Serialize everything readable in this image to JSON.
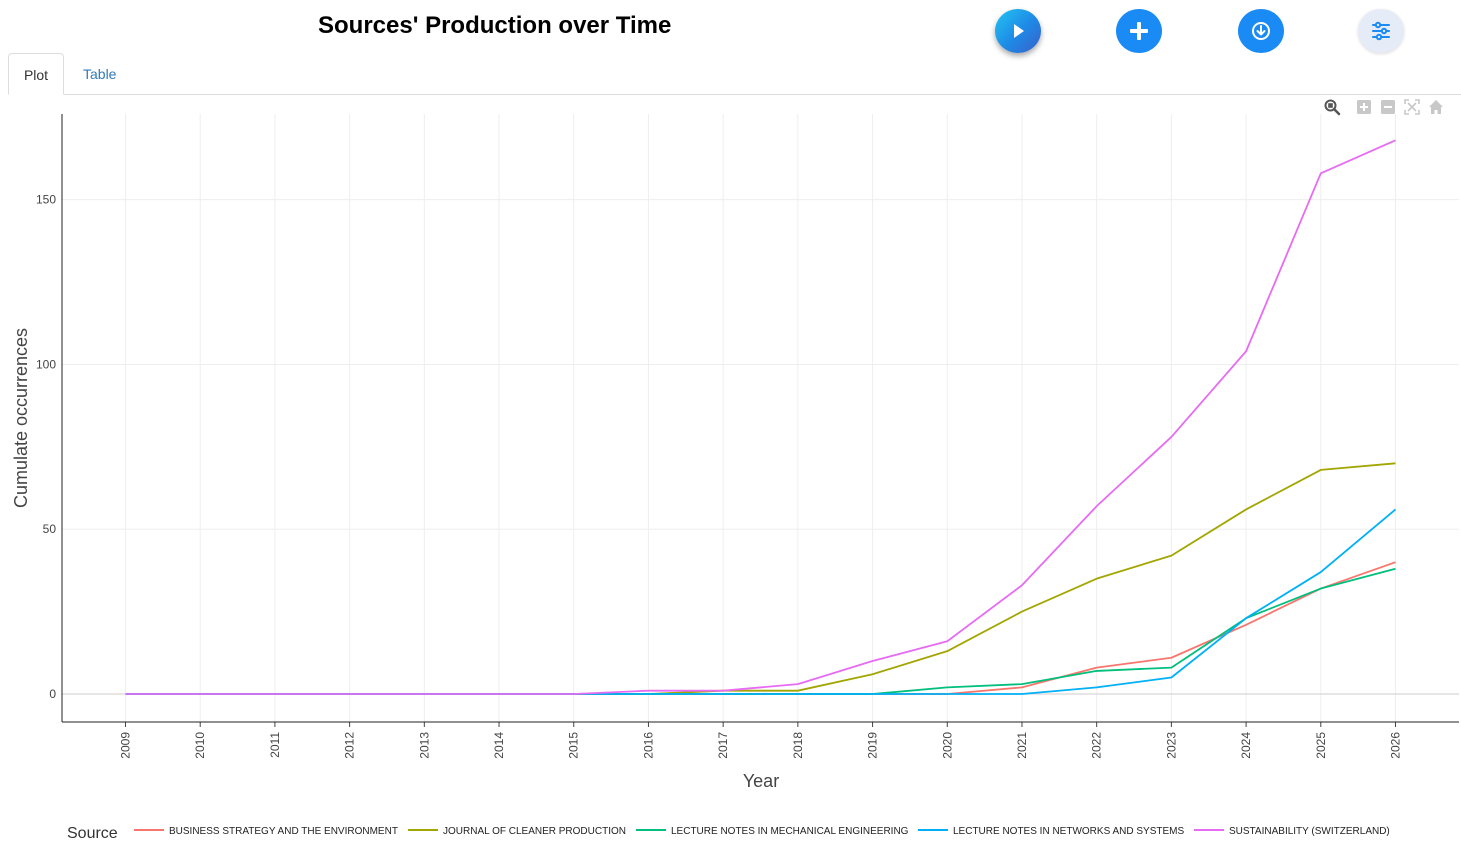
{
  "header": {
    "title": "Sources' Production over Time",
    "buttons": [
      {
        "name": "play",
        "icon": "play-icon"
      },
      {
        "name": "add",
        "icon": "plus-icon"
      },
      {
        "name": "download",
        "icon": "download-icon"
      },
      {
        "name": "settings",
        "icon": "sliders-icon"
      }
    ]
  },
  "tabs": [
    {
      "label": "Plot",
      "active": true
    },
    {
      "label": "Table",
      "active": false
    }
  ],
  "modebar": [
    "zoom-icon",
    "zoom-in-icon",
    "zoom-out-icon",
    "autoscale-icon",
    "reset-axes-home-icon"
  ],
  "chart_data": {
    "type": "line",
    "title": "",
    "xlabel": "Year",
    "ylabel": "Cumulate occurrences",
    "x": [
      2009,
      2010,
      2011,
      2012,
      2013,
      2014,
      2015,
      2016,
      2017,
      2018,
      2019,
      2020,
      2021,
      2022,
      2023,
      2024,
      2025,
      2026
    ],
    "xlim": [
      2008.15,
      2026.85
    ],
    "ylim": [
      -8.5,
      176
    ],
    "yticks": [
      0,
      50,
      100,
      150
    ],
    "grid": true,
    "legend_title": "Source",
    "legend_position": "bottom",
    "series": [
      {
        "name": "BUSINESS STRATEGY AND THE ENVIRONMENT",
        "color": "#F8766D",
        "values": [
          0,
          0,
          0,
          0,
          0,
          0,
          0,
          0,
          0,
          0,
          0,
          0,
          2,
          8,
          11,
          21,
          32,
          40
        ]
      },
      {
        "name": "JOURNAL OF CLEANER PRODUCTION",
        "color": "#A3A500",
        "values": [
          0,
          0,
          0,
          0,
          0,
          0,
          0,
          0,
          1,
          1,
          6,
          13,
          25,
          35,
          42,
          56,
          68,
          70
        ]
      },
      {
        "name": "LECTURE NOTES IN MECHANICAL ENGINEERING",
        "color": "#00BF7D",
        "values": [
          0,
          0,
          0,
          0,
          0,
          0,
          0,
          0,
          0,
          0,
          0,
          2,
          3,
          7,
          8,
          23,
          32,
          38
        ]
      },
      {
        "name": "LECTURE NOTES IN NETWORKS AND SYSTEMS",
        "color": "#00B0F6",
        "values": [
          0,
          0,
          0,
          0,
          0,
          0,
          0,
          0,
          0,
          0,
          0,
          0,
          0,
          2,
          5,
          23,
          37,
          56
        ]
      },
      {
        "name": "SUSTAINABILITY (SWITZERLAND)",
        "color": "#E76BF3",
        "values": [
          0,
          0,
          0,
          0,
          0,
          0,
          0,
          1,
          1,
          3,
          10,
          16,
          33,
          57,
          78,
          104,
          158,
          168
        ]
      }
    ]
  }
}
